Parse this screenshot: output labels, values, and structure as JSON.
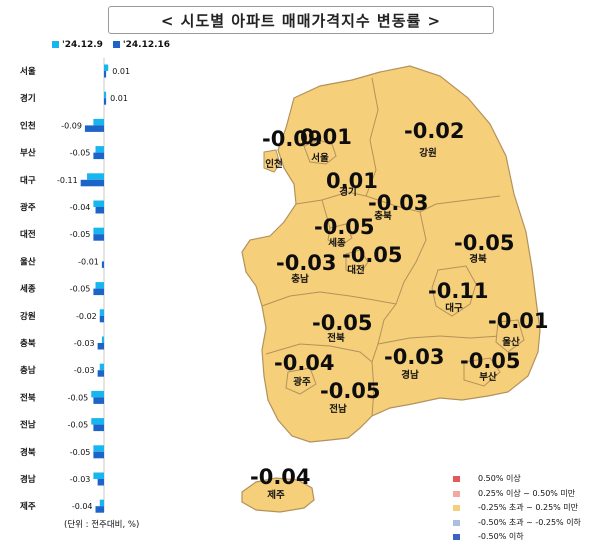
{
  "title": "< 시도별 아파트 매매가격지수 변동률 >",
  "legend_top": [
    {
      "label": "'24.12.9",
      "color": "#17b6ee"
    },
    {
      "label": "'24.12.16",
      "color": "#1c64c8"
    }
  ],
  "unit": "(단위 : 전주대비, %)",
  "legend_bottom": [
    {
      "label": "0.50% 이상",
      "color": "#e05a5a"
    },
    {
      "label": "0.25% 이상 ~ 0.50% 미만",
      "color": "#f2a9a2"
    },
    {
      "label": "-0.25% 초과 ~ 0.25% 미만",
      "color": "#f6cf7a"
    },
    {
      "label": "-0.50% 초과 ~ -0.25% 이하",
      "color": "#a9bee0"
    },
    {
      "label": "-0.50% 이하",
      "color": "#3b63c1"
    }
  ],
  "colors": {
    "map_fill": "#f6cf7a",
    "map_stroke": "#b3925a",
    "bar_prev": "#17b6ee",
    "bar_curr": "#1c64c8"
  },
  "chart_data": {
    "type": "bar",
    "orientation": "horizontal",
    "categories": [
      "서울",
      "경기",
      "인천",
      "부산",
      "대구",
      "광주",
      "대전",
      "울산",
      "세종",
      "강원",
      "충북",
      "충남",
      "전북",
      "전남",
      "경북",
      "경남",
      "제주"
    ],
    "series": [
      {
        "name": "'24.12.9",
        "values": [
          0.02,
          0.01,
          -0.05,
          -0.04,
          -0.08,
          -0.05,
          -0.05,
          0.0,
          -0.04,
          -0.02,
          -0.01,
          -0.02,
          -0.06,
          -0.06,
          -0.05,
          -0.05,
          -0.02
        ]
      },
      {
        "name": "'24.12.16",
        "values": [
          0.01,
          0.01,
          -0.09,
          -0.05,
          -0.11,
          -0.04,
          -0.05,
          -0.01,
          -0.05,
          -0.02,
          -0.03,
          -0.03,
          -0.05,
          -0.05,
          -0.05,
          -0.03,
          -0.04
        ]
      }
    ],
    "data_labels": [
      "0.01",
      "0.01",
      "-0.09",
      "-0.05",
      "-0.11",
      "-0.04",
      "-0.05",
      "-0.01",
      "-0.05",
      "-0.02",
      "-0.03",
      "-0.03",
      "-0.05",
      "-0.05",
      "-0.05",
      "-0.03",
      "-0.04"
    ],
    "xlim": [
      -0.12,
      0.12
    ],
    "map_values": [
      {
        "region": "인천",
        "value": "-0.09"
      },
      {
        "region": "서울",
        "value": "0.01"
      },
      {
        "region": "경기",
        "value": "0.01"
      },
      {
        "region": "강원",
        "value": "-0.02"
      },
      {
        "region": "충북",
        "value": "-0.03"
      },
      {
        "region": "세종",
        "value": "-0.05"
      },
      {
        "region": "충남",
        "value": "-0.03"
      },
      {
        "region": "대전",
        "value": "-0.05"
      },
      {
        "region": "경북",
        "value": "-0.05"
      },
      {
        "region": "대구",
        "value": "-0.11"
      },
      {
        "region": "울산",
        "value": "-0.01"
      },
      {
        "region": "전북",
        "value": "-0.05"
      },
      {
        "region": "광주",
        "value": "-0.04"
      },
      {
        "region": "전남",
        "value": "-0.05"
      },
      {
        "region": "경남",
        "value": "-0.03"
      },
      {
        "region": "부산",
        "value": "-0.05"
      },
      {
        "region": "제주",
        "value": "-0.04"
      }
    ]
  }
}
